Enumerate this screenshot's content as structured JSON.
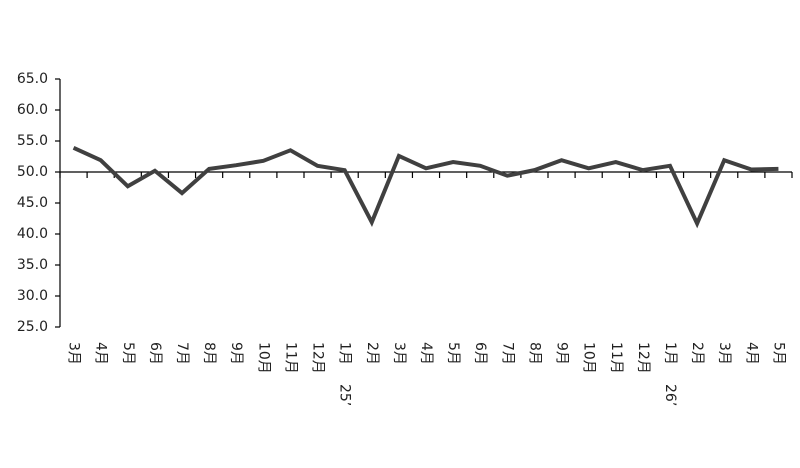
{
  "chart_data": {
    "type": "line",
    "categories": [
      "3月",
      "4月",
      "5月",
      "6月",
      "7月",
      "8月",
      "9月",
      "10月",
      "11月",
      "12月",
      "1月",
      "2月",
      "3月",
      "4月",
      "5月",
      "6月",
      "7月",
      "8月",
      "9月",
      "10月",
      "11月",
      "12月",
      "1月",
      "2月",
      "3月",
      "4月",
      "5月"
    ],
    "category_groups": [
      null,
      null,
      null,
      null,
      null,
      null,
      null,
      null,
      null,
      null,
      "25’",
      null,
      null,
      null,
      null,
      null,
      null,
      null,
      null,
      null,
      null,
      null,
      "26’",
      null,
      null,
      null,
      null
    ],
    "values": [
      53.9,
      51.9,
      47.7,
      50.2,
      46.6,
      50.5,
      51.1,
      51.8,
      53.5,
      51.0,
      50.3,
      41.9,
      52.6,
      50.6,
      51.6,
      51.0,
      49.4,
      50.3,
      51.9,
      50.6,
      51.6,
      50.3,
      51.0,
      41.7,
      51.9,
      50.4,
      50.5
    ],
    "color": "#404040",
    "ylim": [
      25,
      65
    ],
    "yticks": [
      {
        "value": 25,
        "label": "25.0"
      },
      {
        "value": 30,
        "label": "30.0"
      },
      {
        "value": 35,
        "label": "35.0"
      },
      {
        "value": 40,
        "label": "40.0"
      },
      {
        "value": 45,
        "label": "45.0"
      },
      {
        "value": 50,
        "label": "50.0"
      },
      {
        "value": 55,
        "label": "55.0"
      },
      {
        "value": 60,
        "label": "60.0"
      },
      {
        "value": 65,
        "label": "65.0"
      }
    ],
    "x_axis_at": 50,
    "grid": false
  }
}
